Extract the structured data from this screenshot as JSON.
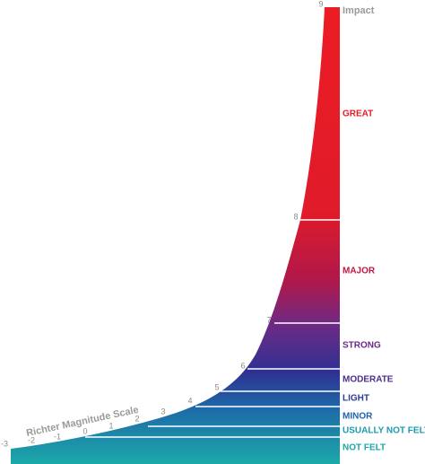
{
  "title": "Richter Magnitude Scale",
  "header": "Impact",
  "magnitudes": [
    "9",
    "8",
    "7",
    "6",
    "5",
    "4",
    "3",
    "2",
    "1",
    "0",
    "-1",
    "-2",
    "-3"
  ],
  "bands": [
    {
      "label": "GREAT",
      "color": "#e31b23"
    },
    {
      "label": "MAJOR",
      "color": "#c4153f"
    },
    {
      "label": "STRONG",
      "color": "#6b2a86"
    },
    {
      "label": "MODERATE",
      "color": "#4a2d8c"
    },
    {
      "label": "LIGHT",
      "color": "#2b3a94"
    },
    {
      "label": "MINOR",
      "color": "#1f63a8"
    },
    {
      "label": "USUALLY NOT FELT",
      "color": "#1b9bb0"
    },
    {
      "label": "NOT FELT",
      "color": "#1aa8a9"
    }
  ]
}
